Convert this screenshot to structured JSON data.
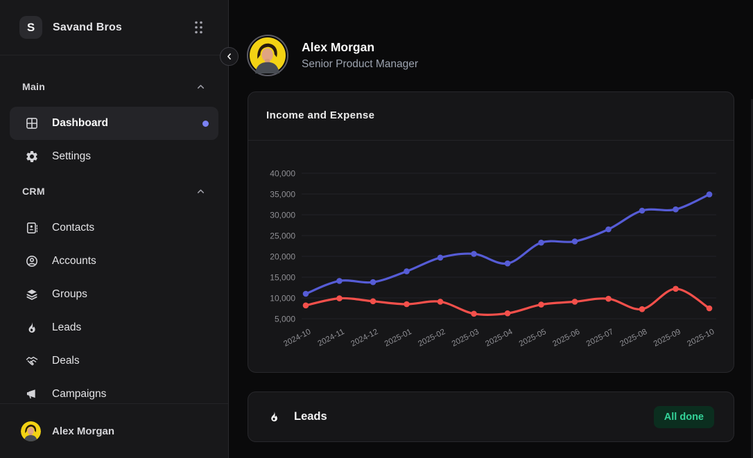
{
  "app": {
    "brand": "Savand Bros",
    "logo_letter": "S"
  },
  "sidebar": {
    "sections": [
      {
        "label": "Main",
        "items": [
          {
            "label": "Dashboard",
            "icon": "dashboard-icon",
            "active": true
          },
          {
            "label": "Settings",
            "icon": "gear-icon"
          }
        ]
      },
      {
        "label": "CRM",
        "items": [
          {
            "label": "Contacts",
            "icon": "contact-card-icon"
          },
          {
            "label": "Accounts",
            "icon": "user-circle-icon"
          },
          {
            "label": "Groups",
            "icon": "layers-icon"
          },
          {
            "label": "Leads",
            "icon": "flame-icon"
          },
          {
            "label": "Deals",
            "icon": "handshake-icon"
          },
          {
            "label": "Campaigns",
            "icon": "megaphone-icon"
          }
        ]
      }
    ],
    "footer_user": "Alex Morgan"
  },
  "profile": {
    "name": "Alex Morgan",
    "role": "Senior Product Manager"
  },
  "cards": {
    "chart": {
      "title": "Income and Expense"
    },
    "leads": {
      "title": "Leads",
      "badge": "All done",
      "badge_bg": "#0b2e1f",
      "badge_color": "#34d399"
    }
  },
  "colors": {
    "income_line": "#565cd6",
    "expense_line": "#f4504b",
    "active_dot": "#7b82f4",
    "grid": "#232327",
    "tick_text": "#909095"
  },
  "chart_data": {
    "type": "line",
    "title": "Income and Expense",
    "x": [
      "2024-10",
      "2024-11",
      "2024-12",
      "2025-01",
      "2025-02",
      "2025-03",
      "2025-04",
      "2025-05",
      "2025-06",
      "2025-07",
      "2025-08",
      "2025-09",
      "2025-10"
    ],
    "series": [
      {
        "name": "Income",
        "color": "#565cd6",
        "values": [
          11000,
          14100,
          13800,
          16400,
          19700,
          20600,
          18300,
          23300,
          23600,
          26500,
          31000,
          31300,
          34900
        ]
      },
      {
        "name": "Expense",
        "color": "#f4504b",
        "values": [
          8200,
          9900,
          9200,
          8500,
          9100,
          6200,
          6300,
          8400,
          9100,
          9800,
          7300,
          12200,
          7500
        ]
      }
    ],
    "ylim": [
      5000,
      40000
    ],
    "yticks": [
      40000,
      35000,
      30000,
      25000,
      20000,
      15000,
      10000,
      5000
    ],
    "grid": "horizontal",
    "legend": false,
    "point_markers": true,
    "smooth": true
  }
}
